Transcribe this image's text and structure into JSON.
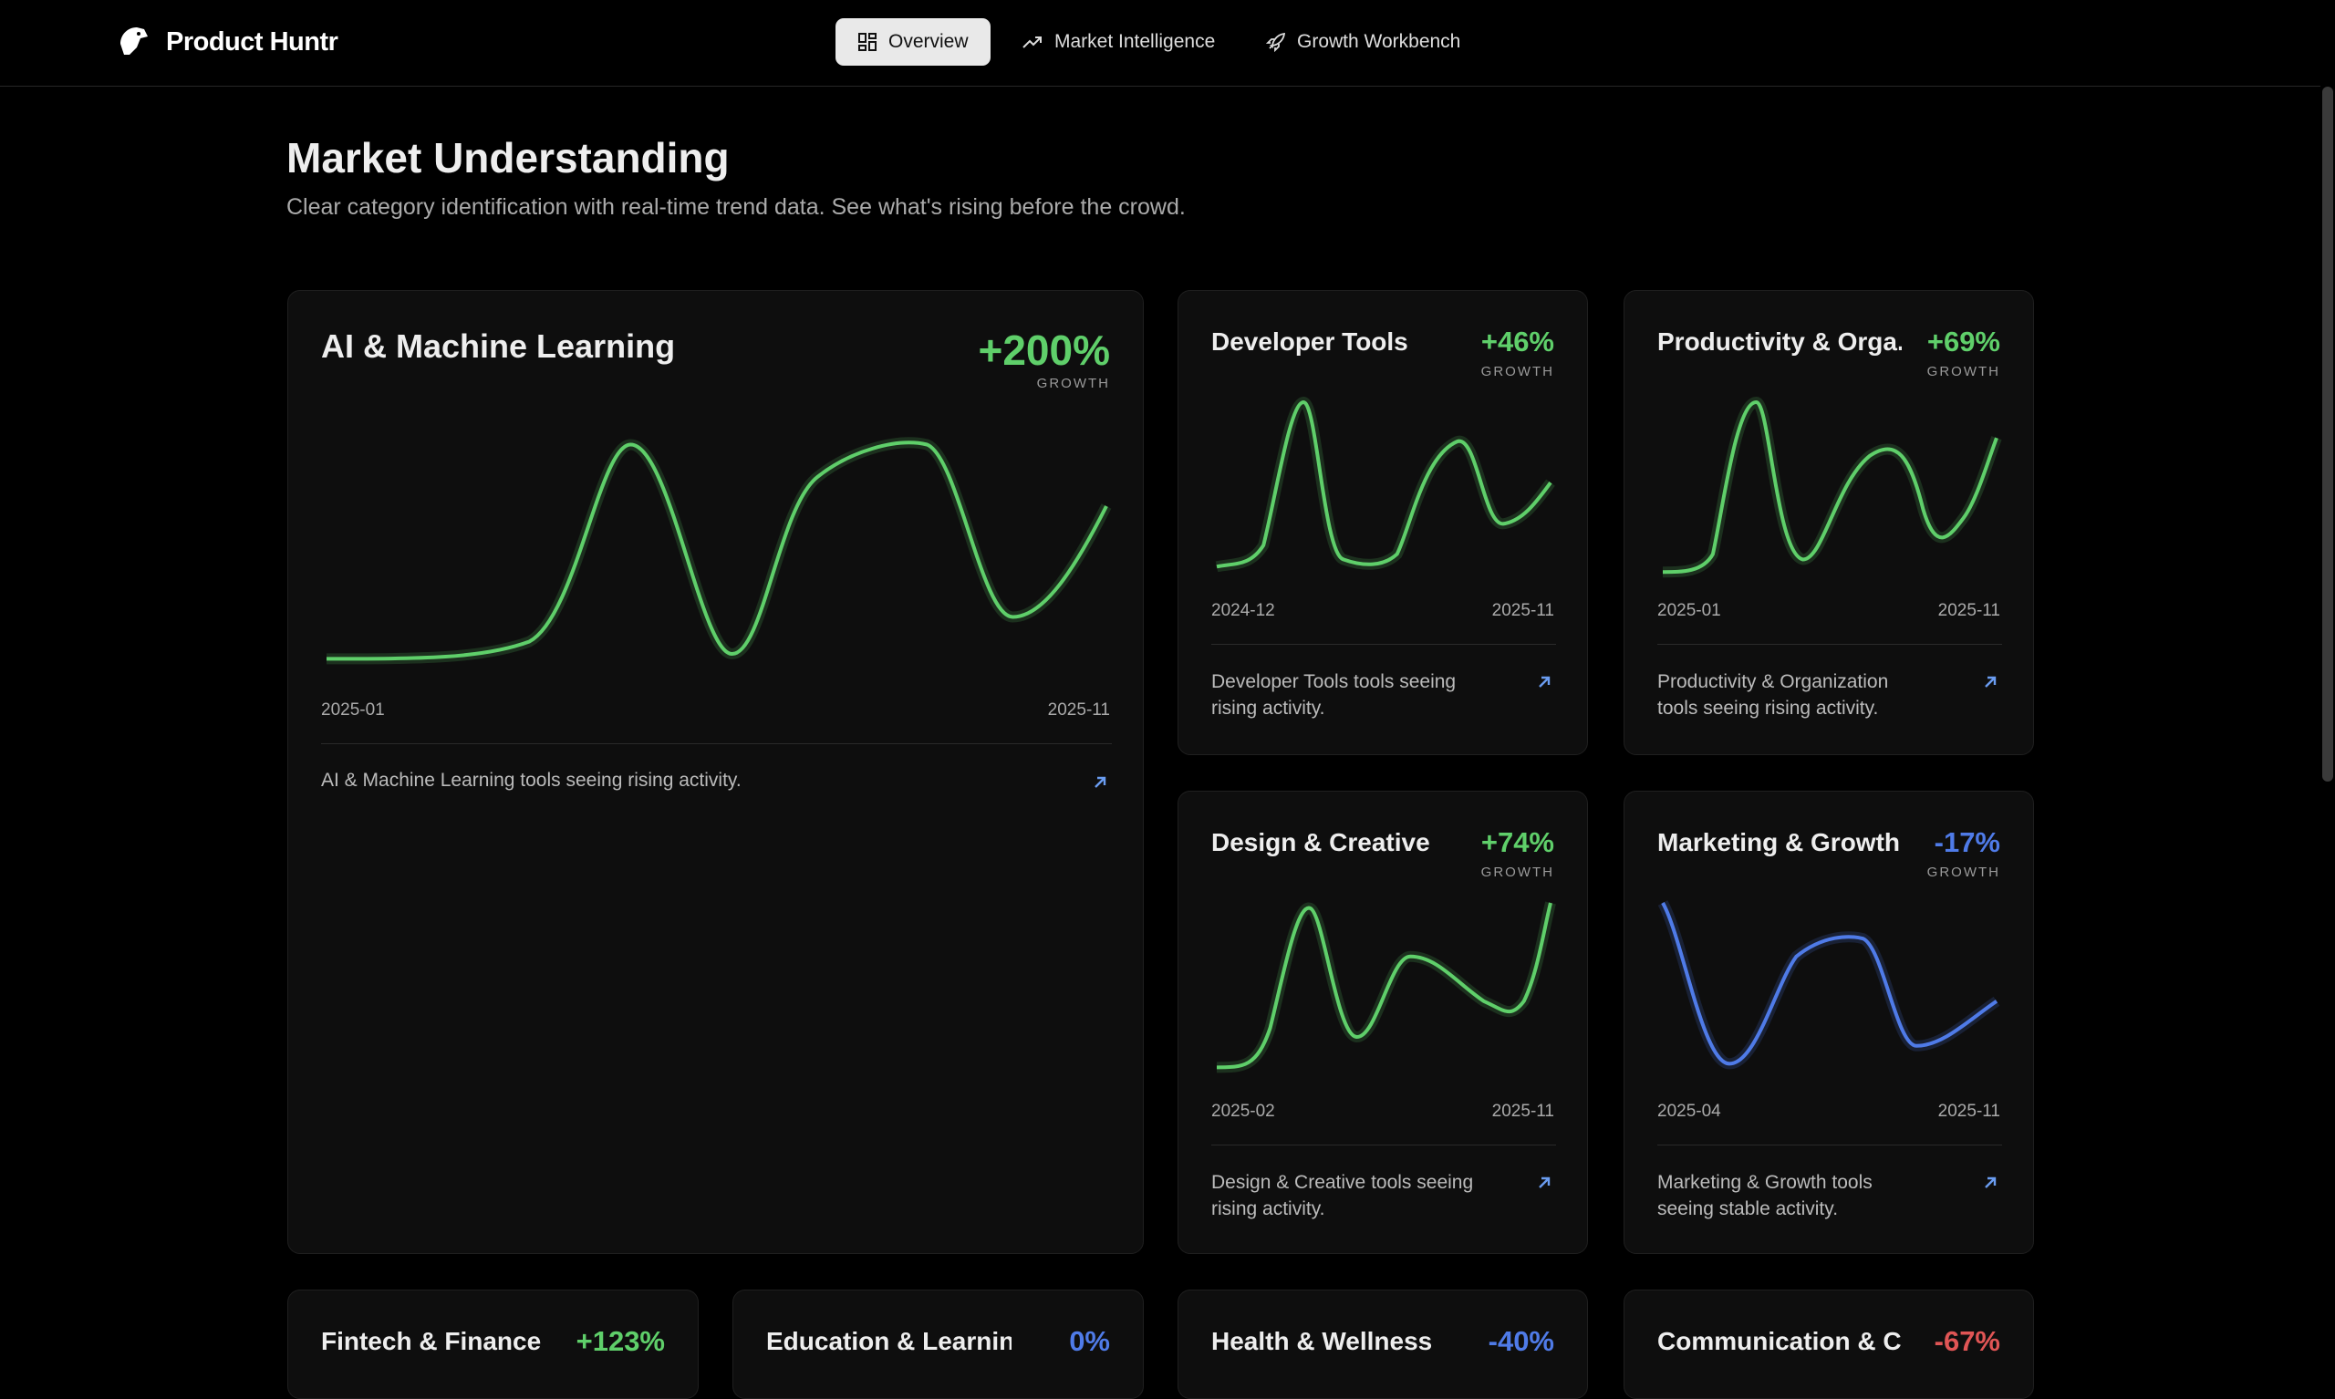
{
  "nav": {
    "brand": "Product Huntr",
    "items": [
      "Overview",
      "Market Intelligence",
      "Growth Workbench"
    ]
  },
  "section": {
    "title": "Market Understanding",
    "subtitle": "Clear category identification with real-time trend data. See what's rising before the crowd."
  },
  "cards": [
    {
      "title": "AI & Machine Learning",
      "growth": "+200%",
      "growth_label": "GROWTH",
      "start": "2025-01",
      "end": "2025-11",
      "description": "AI & Machine Learning tools seeing rising activity."
    },
    {
      "title": "Developer Tools",
      "growth": "+46%",
      "growth_label": "GROWTH",
      "start": "2024-12",
      "end": "2025-11",
      "description": "Developer Tools tools seeing rising activity."
    },
    {
      "title": "Productivity & Orga...",
      "growth": "+69%",
      "growth_label": "GROWTH",
      "start": "2025-01",
      "end": "2025-11",
      "description": "Productivity & Organization tools seeing rising activity."
    },
    {
      "title": "Design & Creative",
      "growth": "+74%",
      "growth_label": "GROWTH",
      "start": "2025-02",
      "end": "2025-11",
      "description": "Design & Creative tools seeing rising activity."
    },
    {
      "title": "Marketing & Growth",
      "growth": "-17%",
      "growth_label": "GROWTH",
      "start": "2025-04",
      "end": "2025-11",
      "description": "Marketing & Growth tools seeing stable activity."
    },
    {
      "title": "Fintech & Finance",
      "growth": "+123%"
    },
    {
      "title": "Education & Learning",
      "growth": "0%"
    },
    {
      "title": "Health & Wellness",
      "growth": "-40%"
    },
    {
      "title": "Communication & C...",
      "growth": "-67%"
    }
  ]
}
